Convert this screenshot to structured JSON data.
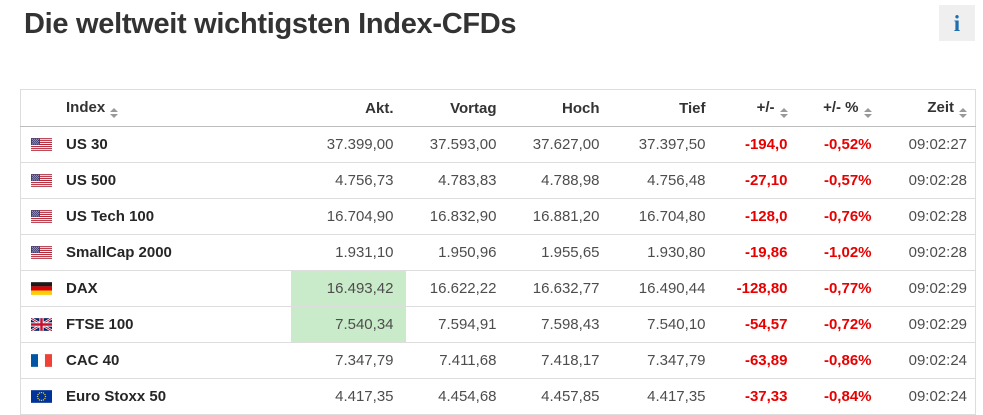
{
  "page": {
    "title": "Die weltweit wichtigsten Index-CFDs",
    "info_icon_glyph": "i"
  },
  "colors": {
    "negative": "#e60000",
    "highlight_green": "#c9ebc9",
    "accent_blue": "#1e6fb0"
  },
  "table": {
    "columns": [
      {
        "key": "index",
        "label": "Index",
        "sortable": true,
        "align": "left"
      },
      {
        "key": "akt",
        "label": "Akt.",
        "sortable": false,
        "align": "right"
      },
      {
        "key": "vortag",
        "label": "Vortag",
        "sortable": false,
        "align": "right"
      },
      {
        "key": "hoch",
        "label": "Hoch",
        "sortable": false,
        "align": "right"
      },
      {
        "key": "tief",
        "label": "Tief",
        "sortable": false,
        "align": "right"
      },
      {
        "key": "change",
        "label": "+/-",
        "sortable": true,
        "align": "right"
      },
      {
        "key": "change_pct",
        "label": "+/- %",
        "sortable": true,
        "align": "right"
      },
      {
        "key": "zeit",
        "label": "Zeit",
        "sortable": true,
        "align": "right"
      }
    ],
    "rows": [
      {
        "flag": "us",
        "index": "US 30",
        "akt": "37.399,00",
        "vortag": "37.593,00",
        "hoch": "37.627,00",
        "tief": "37.397,50",
        "change": "-194,0",
        "change_pct": "-0,52%",
        "zeit": "09:02:27",
        "akt_highlight": false
      },
      {
        "flag": "us",
        "index": "US 500",
        "akt": "4.756,73",
        "vortag": "4.783,83",
        "hoch": "4.788,98",
        "tief": "4.756,48",
        "change": "-27,10",
        "change_pct": "-0,57%",
        "zeit": "09:02:28",
        "akt_highlight": false
      },
      {
        "flag": "us",
        "index": "US Tech 100",
        "akt": "16.704,90",
        "vortag": "16.832,90",
        "hoch": "16.881,20",
        "tief": "16.704,80",
        "change": "-128,0",
        "change_pct": "-0,76%",
        "zeit": "09:02:28",
        "akt_highlight": false
      },
      {
        "flag": "us",
        "index": "SmallCap 2000",
        "akt": "1.931,10",
        "vortag": "1.950,96",
        "hoch": "1.955,65",
        "tief": "1.930,80",
        "change": "-19,86",
        "change_pct": "-1,02%",
        "zeit": "09:02:28",
        "akt_highlight": false
      },
      {
        "flag": "de",
        "index": "DAX",
        "akt": "16.493,42",
        "vortag": "16.622,22",
        "hoch": "16.632,77",
        "tief": "16.490,44",
        "change": "-128,80",
        "change_pct": "-0,77%",
        "zeit": "09:02:29",
        "akt_highlight": true
      },
      {
        "flag": "gb",
        "index": "FTSE 100",
        "akt": "7.540,34",
        "vortag": "7.594,91",
        "hoch": "7.598,43",
        "tief": "7.540,10",
        "change": "-54,57",
        "change_pct": "-0,72%",
        "zeit": "09:02:29",
        "akt_highlight": true
      },
      {
        "flag": "fr",
        "index": "CAC 40",
        "akt": "7.347,79",
        "vortag": "7.411,68",
        "hoch": "7.418,17",
        "tief": "7.347,79",
        "change": "-63,89",
        "change_pct": "-0,86%",
        "zeit": "09:02:24",
        "akt_highlight": false
      },
      {
        "flag": "eu",
        "index": "Euro Stoxx 50",
        "akt": "4.417,35",
        "vortag": "4.454,68",
        "hoch": "4.457,85",
        "tief": "4.417,35",
        "change": "-37,33",
        "change_pct": "-0,84%",
        "zeit": "09:02:24",
        "akt_highlight": false
      }
    ],
    "flag_icons": {
      "us": "flag-us-icon",
      "de": "flag-germany-icon",
      "gb": "flag-uk-icon",
      "fr": "flag-france-icon",
      "eu": "flag-eu-icon"
    }
  }
}
